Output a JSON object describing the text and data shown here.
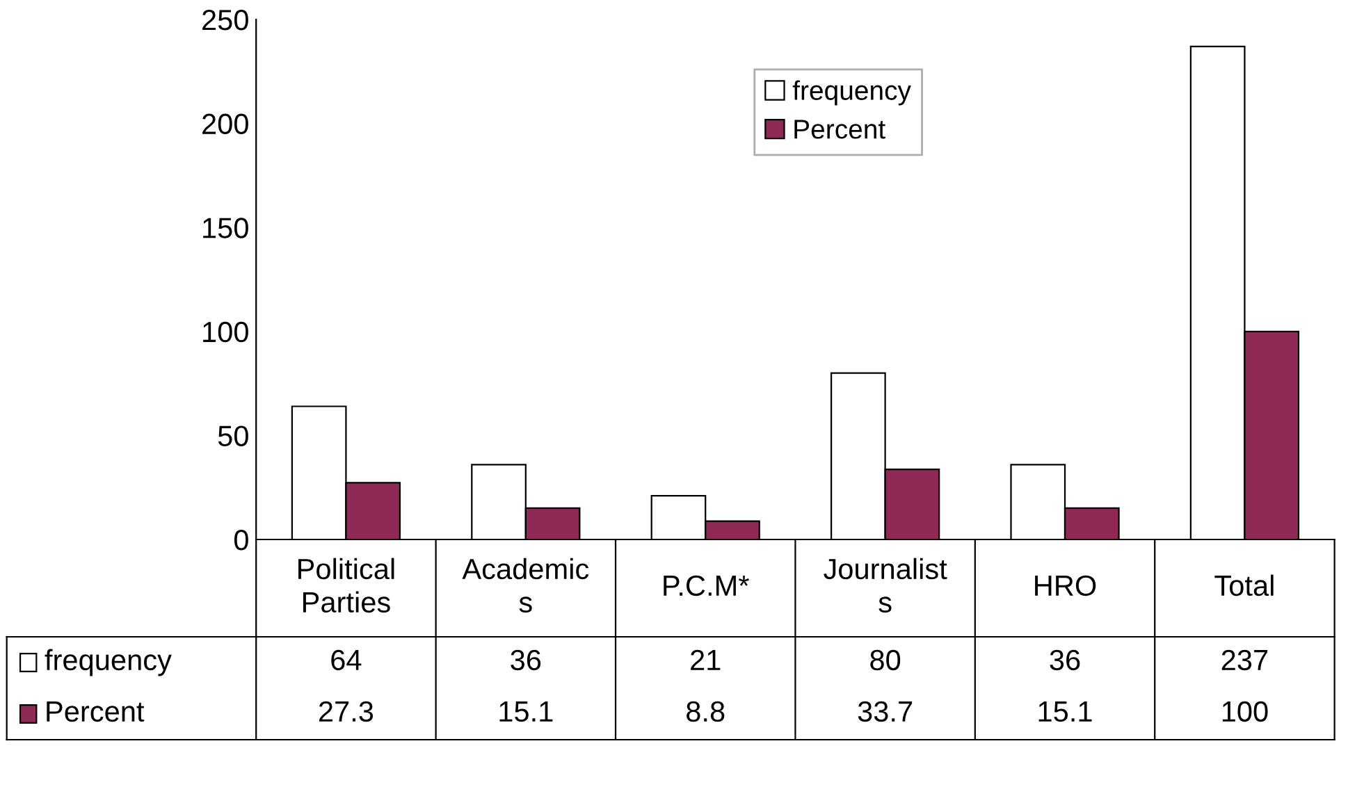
{
  "chart_data": {
    "type": "bar",
    "categories": [
      "Political\nParties",
      "Academic\ns",
      "P.C.M*",
      "Journalist\ns",
      "HRO",
      "Total"
    ],
    "series": [
      {
        "name": "frequency",
        "color": "#ffffff",
        "values": [
          64,
          36,
          21,
          80,
          36,
          237
        ]
      },
      {
        "name": "Percent",
        "color": "#8e2a55",
        "values": [
          27.3,
          15.1,
          8.8,
          33.7,
          15.1,
          100
        ]
      }
    ],
    "ylim": [
      0,
      250
    ],
    "yticks": [
      0,
      50,
      100,
      150,
      200,
      250
    ],
    "grid": false,
    "legend": "top right",
    "data_labels": true
  }
}
